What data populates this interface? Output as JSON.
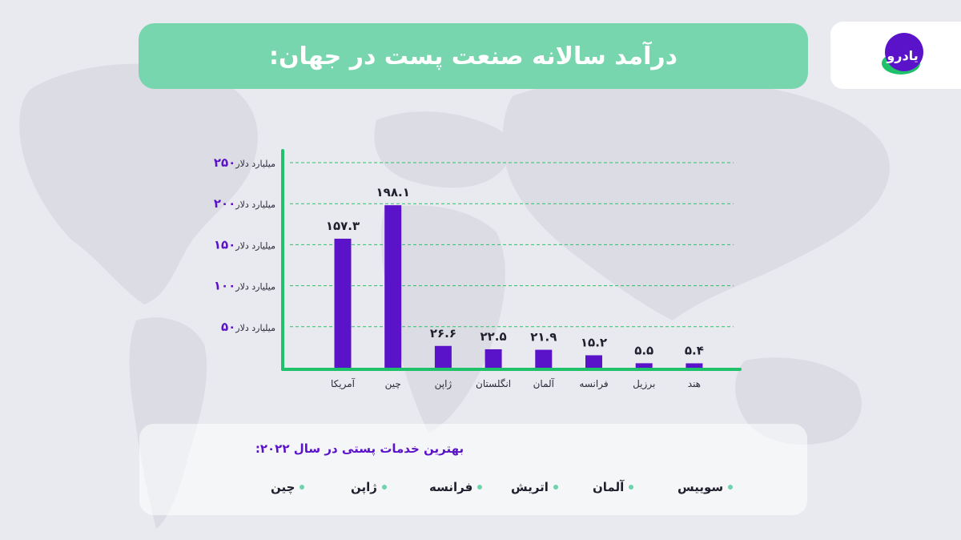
{
  "header": {
    "title": "درآمد سالانه صنعت پست در جهان:"
  },
  "logo": {
    "text": "یادرو"
  },
  "chart_data": {
    "type": "bar",
    "categories": [
      "آمریکا",
      "چین",
      "ژاپن",
      "انگلستان",
      "آلمان",
      "فرانسه",
      "برزیل",
      "هند"
    ],
    "values": [
      157.3,
      198.1,
      26.6,
      22.5,
      21.9,
      15.2,
      5.5,
      5.4
    ],
    "value_labels": [
      "۱۵۷.۳",
      "۱۹۸.۱",
      "۲۶.۶",
      "۲۲.۵",
      "۲۱.۹",
      "۱۵.۲",
      "۵.۵",
      "۵.۴"
    ],
    "y_ticks": [
      {
        "value": 250,
        "number": "۲۵۰",
        "unit": "میلیارد دلار"
      },
      {
        "value": 200,
        "number": "۲۰۰",
        "unit": "میلیارد دلار"
      },
      {
        "value": 150,
        "number": "۱۵۰",
        "unit": "میلیارد دلار"
      },
      {
        "value": 100,
        "number": "۱۰۰",
        "unit": "میلیارد دلار"
      },
      {
        "value": 50,
        "number": "۵۰",
        "unit": "میلیارد دلار"
      }
    ],
    "ylim": [
      0,
      250
    ],
    "grid": true,
    "colors": {
      "bar": "#5b13c9",
      "axis": "#1fc16b",
      "grid": "#2fbf6a",
      "label": "#1f1f2e",
      "tick_number": "#5b13c9"
    }
  },
  "bottom_panel": {
    "title": "بهترین خدمات پستی در سال ۲۰۲۲:",
    "services": [
      "سوییس",
      "آلمان",
      "اتریش",
      "فرانسه",
      "ژاپن",
      "چین"
    ]
  }
}
